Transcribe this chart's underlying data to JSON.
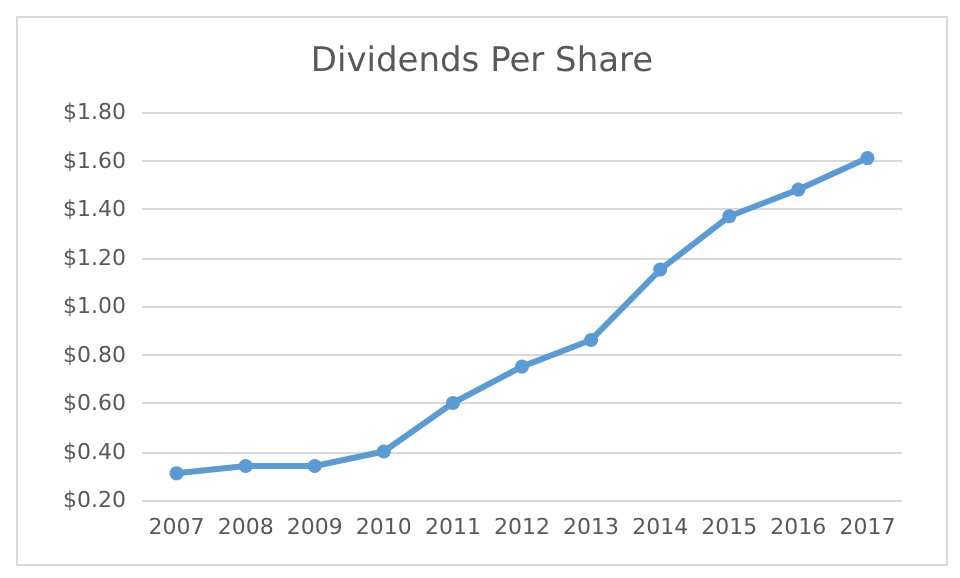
{
  "chart_data": {
    "type": "line",
    "title": "Dividends Per Share",
    "categories": [
      "2007",
      "2008",
      "2009",
      "2010",
      "2011",
      "2012",
      "2013",
      "2014",
      "2015",
      "2016",
      "2017"
    ],
    "series": [
      {
        "color": "#5b9bd5",
        "values": [
          0.31,
          0.34,
          0.34,
          0.4,
          0.6,
          0.75,
          0.86,
          1.15,
          1.37,
          1.48,
          1.61
        ]
      }
    ],
    "ylim": [
      0.2,
      1.8
    ],
    "yticks": [
      {
        "value": 0.2,
        "label": "$0.20"
      },
      {
        "value": 0.4,
        "label": "$0.40"
      },
      {
        "value": 0.6,
        "label": "$0.60"
      },
      {
        "value": 0.8,
        "label": "$0.80"
      },
      {
        "value": 1.0,
        "label": "$1.00"
      },
      {
        "value": 1.2,
        "label": "$1.20"
      },
      {
        "value": 1.4,
        "label": "$1.40"
      },
      {
        "value": 1.6,
        "label": "$1.60"
      },
      {
        "value": 1.8,
        "label": "$1.80"
      }
    ],
    "grid": "y",
    "marker": "circle",
    "line_style": "solid"
  }
}
